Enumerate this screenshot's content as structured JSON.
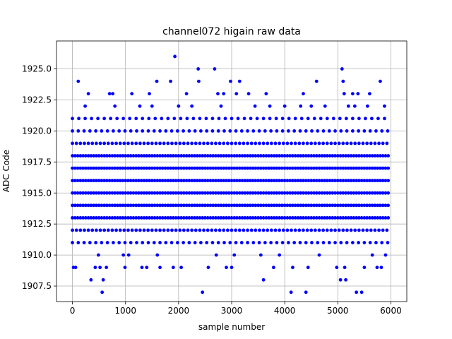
{
  "chart_data": {
    "type": "scatter",
    "title": "channel072 higain raw data",
    "xlabel": "sample number",
    "ylabel": "ADC Code",
    "xlim": [
      -300,
      6300
    ],
    "ylim": [
      1906.25,
      1927.25
    ],
    "xticks": [
      0,
      1000,
      2000,
      3000,
      4000,
      5000,
      6000
    ],
    "xtick_labels": [
      "0",
      "1000",
      "2000",
      "3000",
      "4000",
      "5000",
      "6000"
    ],
    "yticks": [
      1907.5,
      1910.0,
      1912.5,
      1915.0,
      1917.5,
      1920.0,
      1922.5,
      1925.0
    ],
    "ytick_labels": [
      "1907.5",
      "1910.0",
      "1912.5",
      "1915.0",
      "1917.5",
      "1920.0",
      "1922.5",
      "1925.0"
    ],
    "grid": true,
    "marker_color": "#0000ff",
    "series": [
      {
        "bands": [
          {
            "y": 1913,
            "x_start": 0,
            "x_end": 5950,
            "step": 50
          },
          {
            "y": 1914,
            "x_start": 0,
            "x_end": 5950,
            "step": 50
          },
          {
            "y": 1915,
            "x_start": 0,
            "x_end": 5950,
            "step": 50
          },
          {
            "y": 1916,
            "x_start": 0,
            "x_end": 5950,
            "step": 50
          },
          {
            "y": 1917,
            "x_start": 0,
            "x_end": 5950,
            "step": 50
          },
          {
            "y": 1918,
            "x_start": 0,
            "x_end": 5950,
            "step": 50
          },
          {
            "y": 1912,
            "x_start": 0,
            "x_end": 5950,
            "step": 75
          },
          {
            "y": 1919,
            "x_start": 0,
            "x_end": 5950,
            "step": 75
          },
          {
            "y": 1911,
            "x_start": 0,
            "x_end": 5950,
            "step": 110
          },
          {
            "y": 1920,
            "x_start": 0,
            "x_end": 5950,
            "step": 110
          },
          {
            "y": 1921,
            "x_start": 0,
            "x_end": 5950,
            "step": 120
          }
        ],
        "points": [
          [
            20,
            1909
          ],
          [
            60,
            1909
          ],
          [
            110,
            1924
          ],
          [
            240,
            1922
          ],
          [
            300,
            1923
          ],
          [
            350,
            1908
          ],
          [
            430,
            1909
          ],
          [
            490,
            1910
          ],
          [
            520,
            1909
          ],
          [
            560,
            1907
          ],
          [
            580,
            1908
          ],
          [
            640,
            1909
          ],
          [
            700,
            1923
          ],
          [
            760,
            1923
          ],
          [
            800,
            1922
          ],
          [
            960,
            1910
          ],
          [
            990,
            1909
          ],
          [
            1060,
            1910
          ],
          [
            1120,
            1923
          ],
          [
            1270,
            1922
          ],
          [
            1310,
            1909
          ],
          [
            1400,
            1909
          ],
          [
            1450,
            1923
          ],
          [
            1500,
            1922
          ],
          [
            1590,
            1924
          ],
          [
            1600,
            1910
          ],
          [
            1650,
            1909
          ],
          [
            1850,
            1924
          ],
          [
            1900,
            1909
          ],
          [
            1930,
            1926
          ],
          [
            2000,
            1922
          ],
          [
            2050,
            1909
          ],
          [
            2150,
            1923
          ],
          [
            2250,
            1922
          ],
          [
            2370,
            1925
          ],
          [
            2380,
            1924
          ],
          [
            2450,
            1907
          ],
          [
            2560,
            1909
          ],
          [
            2680,
            1925
          ],
          [
            2710,
            1910
          ],
          [
            2740,
            1923
          ],
          [
            2800,
            1922
          ],
          [
            2850,
            1923
          ],
          [
            2900,
            1909
          ],
          [
            2980,
            1924
          ],
          [
            3000,
            1909
          ],
          [
            3050,
            1910
          ],
          [
            3090,
            1923
          ],
          [
            3150,
            1924
          ],
          [
            3320,
            1923
          ],
          [
            3440,
            1922
          ],
          [
            3550,
            1910
          ],
          [
            3600,
            1908
          ],
          [
            3650,
            1923
          ],
          [
            3720,
            1922
          ],
          [
            3790,
            1909
          ],
          [
            3900,
            1910
          ],
          [
            4000,
            1922
          ],
          [
            4120,
            1907
          ],
          [
            4150,
            1909
          ],
          [
            4300,
            1922
          ],
          [
            4350,
            1923
          ],
          [
            4400,
            1907
          ],
          [
            4440,
            1909
          ],
          [
            4500,
            1922
          ],
          [
            4600,
            1924
          ],
          [
            4650,
            1910
          ],
          [
            4760,
            1922
          ],
          [
            4980,
            1909
          ],
          [
            5050,
            1908
          ],
          [
            5080,
            1925
          ],
          [
            5100,
            1924
          ],
          [
            5120,
            1923
          ],
          [
            5130,
            1909
          ],
          [
            5150,
            1908
          ],
          [
            5200,
            1922
          ],
          [
            5280,
            1923
          ],
          [
            5320,
            1922
          ],
          [
            5350,
            1907
          ],
          [
            5380,
            1923
          ],
          [
            5450,
            1907
          ],
          [
            5500,
            1909
          ],
          [
            5560,
            1922
          ],
          [
            5600,
            1923
          ],
          [
            5650,
            1910
          ],
          [
            5740,
            1909
          ],
          [
            5800,
            1924
          ],
          [
            5820,
            1909
          ],
          [
            5880,
            1922
          ],
          [
            5900,
            1910
          ]
        ]
      }
    ]
  }
}
